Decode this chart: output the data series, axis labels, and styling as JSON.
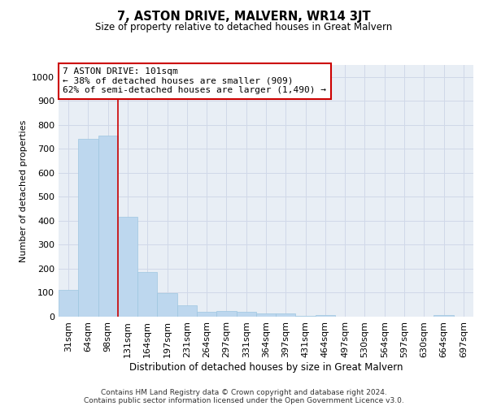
{
  "title": "7, ASTON DRIVE, MALVERN, WR14 3JT",
  "subtitle": "Size of property relative to detached houses in Great Malvern",
  "xlabel": "Distribution of detached houses by size in Great Malvern",
  "ylabel": "Number of detached properties",
  "categories": [
    "31sqm",
    "64sqm",
    "98sqm",
    "131sqm",
    "164sqm",
    "197sqm",
    "231sqm",
    "264sqm",
    "297sqm",
    "331sqm",
    "364sqm",
    "397sqm",
    "431sqm",
    "464sqm",
    "497sqm",
    "530sqm",
    "564sqm",
    "597sqm",
    "630sqm",
    "664sqm",
    "697sqm"
  ],
  "values": [
    113,
    743,
    757,
    418,
    187,
    97,
    46,
    22,
    24,
    22,
    15,
    14,
    3,
    8,
    0,
    0,
    0,
    0,
    0,
    8,
    0
  ],
  "bar_color": "#bdd7ee",
  "bar_edge_color": "#9ec6e0",
  "grid_color": "#d0d8e8",
  "background_color": "#e8eef5",
  "annotation_text": "7 ASTON DRIVE: 101sqm\n← 38% of detached houses are smaller (909)\n62% of semi-detached houses are larger (1,490) →",
  "annotation_box_color": "#ffffff",
  "annotation_box_edge": "#cc0000",
  "red_line_x": 2.5,
  "ylim": [
    0,
    1050
  ],
  "yticks": [
    0,
    100,
    200,
    300,
    400,
    500,
    600,
    700,
    800,
    900,
    1000
  ],
  "footer_line1": "Contains HM Land Registry data © Crown copyright and database right 2024.",
  "footer_line2": "Contains public sector information licensed under the Open Government Licence v3.0."
}
